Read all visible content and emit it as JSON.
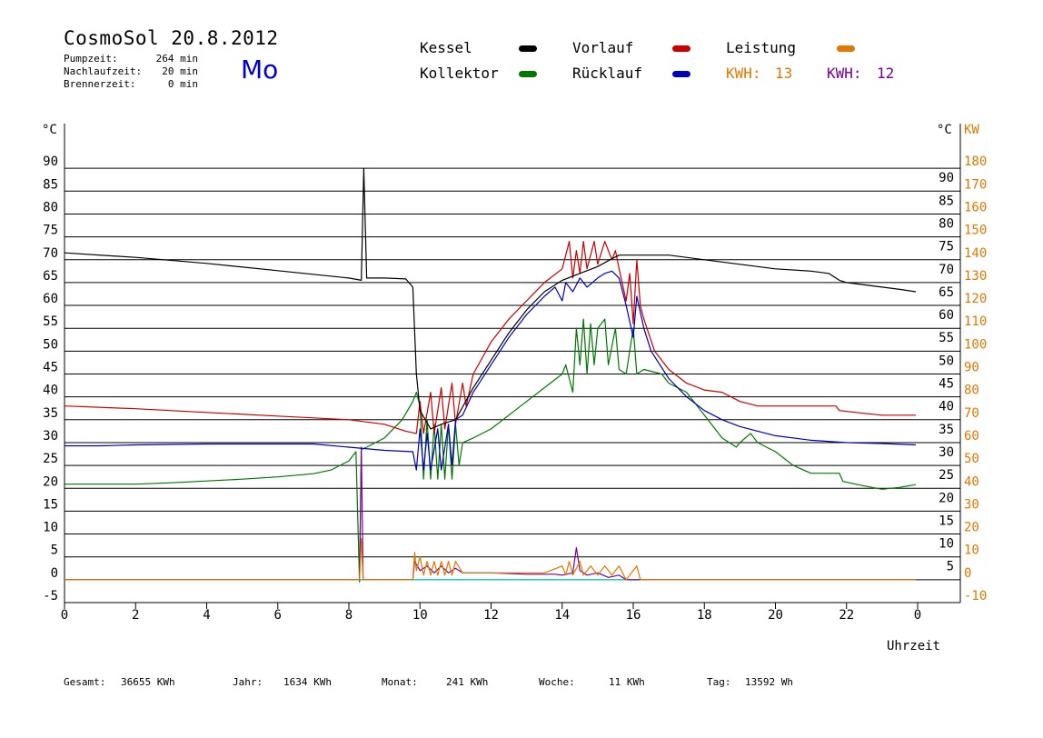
{
  "header": {
    "title": "CosmoSol 20.8.2012",
    "day": "Mo",
    "pumpzeit_label": "Pumpzeit:",
    "pumpzeit_value": "264 min",
    "nachlaufzeit_label": "Nachlaufzeit:",
    "nachlaufzeit_value": "20 min",
    "brennerzeit_label": "Brennerzeit:",
    "brennerzeit_value": "0 min"
  },
  "legend": {
    "kessel": "Kessel",
    "kollektor": "Kollektor",
    "vorlauf": "Vorlauf",
    "ruecklauf": "Rücklauf",
    "leistung": "Leistung",
    "kwh1_label": "KWH:",
    "kwh1_value": "13",
    "kwh2_label": "KWH:",
    "kwh2_value": "12"
  },
  "footer": {
    "gesamt_label": "Gesamt:",
    "gesamt_value": "36655 KWh",
    "jahr_label": "Jahr:",
    "jahr_value": "1634 KWh",
    "monat_label": "Monat:",
    "monat_value": "241 KWh",
    "woche_label": "Woche:",
    "woche_value": "11 KWh",
    "tag_label": "Tag:",
    "tag_value": "13592 Wh"
  },
  "colors": {
    "kessel": "#000000",
    "kollektor": "#007800",
    "vorlauf": "#c80000",
    "ruecklauf": "#0000b4",
    "leistung": "#e07800",
    "leistung2": "#780096",
    "baseline": "#00c8c8",
    "kw_axis": "#e07800"
  },
  "chart_data": {
    "type": "line",
    "xlabel": "Uhrzeit",
    "ylabel_left": "°C",
    "ylabel_right_c": "°C",
    "ylabel_right_kw": "KW",
    "xlim": [
      0,
      24
    ],
    "ylim": [
      -5,
      95
    ],
    "x_ticks": [
      "0",
      "2",
      "4",
      "6",
      "8",
      "10",
      "12",
      "14",
      "16",
      "18",
      "20",
      "22",
      "0"
    ],
    "y_ticks_left": [
      "90",
      "85",
      "80",
      "75",
      "70",
      "65",
      "60",
      "55",
      "50",
      "45",
      "40",
      "35",
      "30",
      "25",
      "20",
      "15",
      "10",
      "5",
      "0",
      "-5"
    ],
    "y_ticks_right_c": [
      "90",
      "85",
      "80",
      "75",
      "70",
      "65",
      "60",
      "55",
      "50",
      "45",
      "40",
      "35",
      "30",
      "25",
      "20",
      "15",
      "10",
      "5"
    ],
    "y_ticks_right_kw": [
      "180",
      "170",
      "160",
      "150",
      "140",
      "130",
      "120",
      "110",
      "100",
      "90",
      "80",
      "70",
      "60",
      "50",
      "40",
      "30",
      "20",
      "10",
      "0",
      "-10"
    ],
    "series": [
      {
        "name": "Kessel",
        "color": "#000000",
        "points": [
          [
            0,
            71.5
          ],
          [
            2,
            70.5
          ],
          [
            4,
            69.2
          ],
          [
            6,
            67.6
          ],
          [
            8,
            66
          ],
          [
            8.35,
            65.5
          ],
          [
            8.42,
            90
          ],
          [
            8.5,
            66
          ],
          [
            9,
            66
          ],
          [
            9.6,
            65.8
          ],
          [
            9.8,
            64
          ],
          [
            9.9,
            45
          ],
          [
            10,
            37
          ],
          [
            10.3,
            33
          ],
          [
            10.6,
            34
          ],
          [
            11,
            35
          ],
          [
            11.5,
            42
          ],
          [
            12,
            48
          ],
          [
            12.5,
            54
          ],
          [
            13,
            59
          ],
          [
            13.5,
            63
          ],
          [
            14,
            65.5
          ],
          [
            14.5,
            67
          ],
          [
            15,
            68.5
          ],
          [
            15.3,
            69.8
          ],
          [
            15.6,
            71
          ],
          [
            16,
            71
          ],
          [
            17,
            71
          ],
          [
            18,
            70
          ],
          [
            19,
            69
          ],
          [
            20,
            68
          ],
          [
            21,
            67.5
          ],
          [
            21.5,
            67
          ],
          [
            21.8,
            65.5
          ],
          [
            22,
            65
          ],
          [
            22.5,
            64.5
          ],
          [
            23,
            64
          ],
          [
            23.5,
            63.5
          ],
          [
            23.95,
            63
          ]
        ]
      },
      {
        "name": "Vorlauf",
        "color": "#c80000",
        "points": [
          [
            0,
            38
          ],
          [
            2,
            37.4
          ],
          [
            4,
            36.6
          ],
          [
            6,
            35.8
          ],
          [
            8,
            35
          ],
          [
            9,
            34
          ],
          [
            9.6,
            32.5
          ],
          [
            9.9,
            32
          ],
          [
            10,
            39
          ],
          [
            10.1,
            32
          ],
          [
            10.3,
            41
          ],
          [
            10.4,
            32
          ],
          [
            10.6,
            42
          ],
          [
            10.7,
            33
          ],
          [
            10.9,
            43
          ],
          [
            11,
            34
          ],
          [
            11.2,
            43
          ],
          [
            11.3,
            38
          ],
          [
            11.5,
            45
          ],
          [
            12,
            52
          ],
          [
            12.5,
            57
          ],
          [
            13,
            61
          ],
          [
            13.5,
            65
          ],
          [
            14,
            68
          ],
          [
            14.2,
            74
          ],
          [
            14.3,
            66
          ],
          [
            14.4,
            72
          ],
          [
            14.5,
            67
          ],
          [
            14.6,
            74
          ],
          [
            14.7,
            68
          ],
          [
            14.9,
            74
          ],
          [
            15,
            69
          ],
          [
            15.2,
            74
          ],
          [
            15.4,
            70
          ],
          [
            15.5,
            72
          ],
          [
            15.6,
            68
          ],
          [
            15.8,
            61
          ],
          [
            15.9,
            67
          ],
          [
            16,
            56
          ],
          [
            16.1,
            70
          ],
          [
            16.2,
            60
          ],
          [
            16.3,
            57
          ],
          [
            16.6,
            50
          ],
          [
            17,
            46
          ],
          [
            17.5,
            43
          ],
          [
            18,
            41.5
          ],
          [
            18.5,
            41
          ],
          [
            19,
            39
          ],
          [
            19.5,
            38
          ],
          [
            20,
            38
          ],
          [
            21,
            38
          ],
          [
            21.7,
            38
          ],
          [
            21.8,
            37
          ],
          [
            22.5,
            36.4
          ],
          [
            23,
            36
          ],
          [
            23.95,
            36
          ]
        ]
      },
      {
        "name": "Rücklauf",
        "color": "#0000b4",
        "points": [
          [
            0,
            29.3
          ],
          [
            1,
            29.3
          ],
          [
            2,
            29.5
          ],
          [
            4,
            29.7
          ],
          [
            6,
            29.7
          ],
          [
            7,
            29.7
          ],
          [
            8,
            29
          ],
          [
            9,
            28.3
          ],
          [
            9.8,
            28
          ],
          [
            9.9,
            24
          ],
          [
            10,
            33
          ],
          [
            10.1,
            24
          ],
          [
            10.2,
            32
          ],
          [
            10.3,
            24
          ],
          [
            10.5,
            33
          ],
          [
            10.6,
            24
          ],
          [
            10.8,
            34
          ],
          [
            10.9,
            25
          ],
          [
            11,
            35
          ],
          [
            11.2,
            36
          ],
          [
            11.5,
            41
          ],
          [
            12,
            47
          ],
          [
            12.5,
            53
          ],
          [
            13,
            58
          ],
          [
            13.5,
            62
          ],
          [
            13.8,
            64
          ],
          [
            14,
            61
          ],
          [
            14.1,
            65
          ],
          [
            14.3,
            63
          ],
          [
            14.5,
            66
          ],
          [
            14.7,
            64
          ],
          [
            15,
            66
          ],
          [
            15.2,
            67
          ],
          [
            15.4,
            67.5
          ],
          [
            15.6,
            66
          ],
          [
            15.8,
            60
          ],
          [
            16,
            53
          ],
          [
            16.1,
            62
          ],
          [
            16.3,
            55
          ],
          [
            16.5,
            50
          ],
          [
            17,
            44
          ],
          [
            17.5,
            40
          ],
          [
            18,
            37
          ],
          [
            18.5,
            35
          ],
          [
            19,
            33.5
          ],
          [
            19.5,
            32.5
          ],
          [
            20,
            31.5
          ],
          [
            21,
            30.5
          ],
          [
            22,
            30
          ],
          [
            23,
            29.8
          ],
          [
            23.95,
            29.5
          ]
        ]
      },
      {
        "name": "Kollektor",
        "color": "#007800",
        "points": [
          [
            0,
            20.9
          ],
          [
            2,
            20.9
          ],
          [
            3,
            21.2
          ],
          [
            4,
            21.6
          ],
          [
            5,
            22
          ],
          [
            6,
            22.5
          ],
          [
            7,
            23.2
          ],
          [
            7.5,
            24
          ],
          [
            8,
            26
          ],
          [
            8.2,
            28
          ],
          [
            8.3,
            -0.5
          ],
          [
            8.35,
            28.5
          ],
          [
            8.5,
            29
          ],
          [
            9,
            31
          ],
          [
            9.5,
            35
          ],
          [
            9.8,
            39
          ],
          [
            9.9,
            41
          ],
          [
            10,
            38
          ],
          [
            10.1,
            22
          ],
          [
            10.2,
            35
          ],
          [
            10.3,
            22
          ],
          [
            10.4,
            34
          ],
          [
            10.5,
            22
          ],
          [
            10.6,
            34
          ],
          [
            10.7,
            22
          ],
          [
            10.8,
            34
          ],
          [
            10.9,
            22
          ],
          [
            11,
            34
          ],
          [
            11.1,
            25
          ],
          [
            11.2,
            30
          ],
          [
            11.5,
            31
          ],
          [
            12,
            33
          ],
          [
            12.5,
            36
          ],
          [
            13,
            39
          ],
          [
            13.5,
            42
          ],
          [
            14,
            45
          ],
          [
            14.1,
            47
          ],
          [
            14.3,
            41
          ],
          [
            14.4,
            55
          ],
          [
            14.5,
            47
          ],
          [
            14.6,
            57
          ],
          [
            14.7,
            45
          ],
          [
            14.8,
            56
          ],
          [
            14.9,
            47
          ],
          [
            15,
            55
          ],
          [
            15.2,
            57
          ],
          [
            15.3,
            47
          ],
          [
            15.5,
            55
          ],
          [
            15.6,
            46
          ],
          [
            15.8,
            45
          ],
          [
            16,
            55
          ],
          [
            16.1,
            45
          ],
          [
            16.3,
            46
          ],
          [
            16.8,
            45
          ],
          [
            17,
            43
          ],
          [
            17.5,
            41
          ],
          [
            18,
            36
          ],
          [
            18.5,
            31
          ],
          [
            18.9,
            29
          ],
          [
            19,
            30
          ],
          [
            19.3,
            32
          ],
          [
            19.5,
            30
          ],
          [
            20,
            28
          ],
          [
            20.5,
            25
          ],
          [
            21,
            23.3
          ],
          [
            21.8,
            23.3
          ],
          [
            21.9,
            21.5
          ],
          [
            22.5,
            20.5
          ],
          [
            23,
            19.8
          ],
          [
            23.5,
            20.2
          ],
          [
            23.95,
            20.8
          ]
        ]
      },
      {
        "name": "Leistung",
        "color": "#e07800",
        "points": [
          [
            0,
            0
          ],
          [
            8.3,
            0
          ],
          [
            8.35,
            9
          ],
          [
            8.4,
            0
          ],
          [
            9.8,
            0
          ],
          [
            9.85,
            6
          ],
          [
            9.9,
            2
          ],
          [
            10,
            5
          ],
          [
            10.1,
            1
          ],
          [
            10.2,
            4
          ],
          [
            10.3,
            1
          ],
          [
            10.4,
            4
          ],
          [
            10.5,
            1
          ],
          [
            10.6,
            4
          ],
          [
            10.7,
            1
          ],
          [
            10.8,
            4
          ],
          [
            10.9,
            1
          ],
          [
            11,
            4
          ],
          [
            11.2,
            1.5
          ],
          [
            12,
            1.5
          ],
          [
            13,
            1.5
          ],
          [
            13.5,
            1.5
          ],
          [
            14,
            3
          ],
          [
            14.1,
            1
          ],
          [
            14.2,
            4
          ],
          [
            14.3,
            1
          ],
          [
            14.5,
            4
          ],
          [
            14.6,
            1
          ],
          [
            14.8,
            3
          ],
          [
            15,
            1
          ],
          [
            15.2,
            3
          ],
          [
            15.4,
            1
          ],
          [
            15.6,
            3
          ],
          [
            15.8,
            0
          ],
          [
            16.1,
            3
          ],
          [
            16.2,
            0
          ],
          [
            23.95,
            0
          ]
        ]
      },
      {
        "name": "",
        "color": "#780096",
        "points": [
          [
            0,
            0
          ],
          [
            8.3,
            0
          ],
          [
            8.35,
            29
          ],
          [
            8.4,
            0
          ],
          [
            9.8,
            0
          ],
          [
            9.85,
            4
          ],
          [
            10,
            2
          ],
          [
            10.2,
            3
          ],
          [
            10.4,
            1.5
          ],
          [
            10.6,
            3
          ],
          [
            10.8,
            1.5
          ],
          [
            11,
            2.5
          ],
          [
            11.2,
            1.5
          ],
          [
            12,
            1.5
          ],
          [
            13,
            1.2
          ],
          [
            13.8,
            1.2
          ],
          [
            14,
            1
          ],
          [
            14.3,
            1.5
          ],
          [
            14.4,
            7
          ],
          [
            14.5,
            2
          ],
          [
            14.7,
            1
          ],
          [
            15,
            1.5
          ],
          [
            15.3,
            0.5
          ],
          [
            15.6,
            1
          ],
          [
            15.8,
            0
          ],
          [
            23.95,
            0
          ]
        ]
      },
      {
        "name": "",
        "color": "#00c8c8",
        "points": [
          [
            0,
            0
          ],
          [
            23.95,
            0
          ]
        ]
      }
    ]
  }
}
